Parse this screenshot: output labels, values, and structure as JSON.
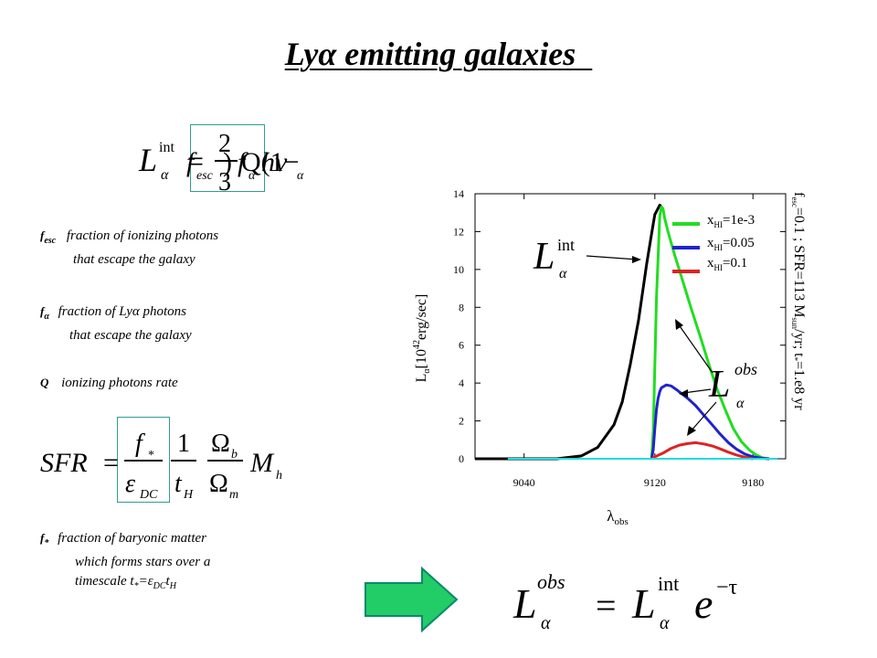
{
  "slide": {
    "title": "Lyα emitting galaxies  "
  },
  "formulas": {
    "lint": {
      "lhs": "L",
      "sup": "int",
      "sub": "α",
      "eq": "=",
      "num": "2",
      "den": "3",
      "rest1": "Q(1−",
      "f": "f",
      "fsub": "esc",
      "rest2": ")",
      "falpha": "f",
      "falphasub": "α",
      "hnu": "hν",
      "nusub": "α"
    },
    "sfr": {
      "lhs": "SFR",
      "eq": "=",
      "n1": "f",
      "n1sub": "*",
      "d1": "ε",
      "d1sub": "DC",
      "n2": "1",
      "d2": "t",
      "d2sub": "H",
      "n3": "Ω",
      "n3sub": "b",
      "d3": "Ω",
      "d3sub": "m",
      "m": "M",
      "msub": "h"
    },
    "lobs": {
      "lhs": "L",
      "lhssup": "obs",
      "lhssub": "α",
      "eq": "=",
      "r": "L",
      "rsup": "int",
      "rsub": "α",
      "e": "e",
      "esup": "−τ"
    }
  },
  "notes": {
    "fesc": {
      "sym": "f",
      "symsub": "esc",
      "line1": "fraction of ionizing photons",
      "line2": "that escape the galaxy"
    },
    "falpha": {
      "sym": "f",
      "symsub": "α",
      "line1": "fraction of Lyα photons",
      "line2": "that escape the galaxy"
    },
    "q": {
      "sym": "Q",
      "line1": "ionizing photons rate"
    },
    "fstar": {
      "sym": "f",
      "symsub": "*",
      "line1": "fraction of baryonic matter",
      "line2": "which forms stars over a",
      "line3a": "timescale t",
      "line3b": "*",
      "line3c": "=ε",
      "line3d": "DC",
      "line3e": "t",
      "line3f": "H"
    }
  },
  "chart_data": {
    "type": "line",
    "xlabel": "λobs",
    "xlabel_main": "λ",
    "xlabel_sub": "obs",
    "ylabel_main": "L",
    "ylabel_sub": "α",
    "ylabel_rest": "[10",
    "ylabel_sup": "42",
    "ylabel_end": "erg/sec]",
    "xlim": [
      9010,
      9200
    ],
    "ylim": [
      0,
      14
    ],
    "x_ticks": [
      9040,
      9120,
      9180
    ],
    "y_ticks": [
      0,
      2,
      4,
      6,
      8,
      10,
      12,
      14
    ],
    "side_note": {
      "p1": "f",
      "p1sub": "esc",
      "p2": "=0.1 ; SFR=113 M",
      "p2sub": "sun",
      "p3": "/yr; t",
      "p3sub": "*",
      "p4": "=1.e8 yr"
    },
    "legend": [
      {
        "label_main": "x",
        "label_sub": "HI",
        "label_rest": "=1e-3",
        "color": "#22dd22"
      },
      {
        "label_main": "x",
        "label_sub": "HI",
        "label_rest": "=0.05",
        "color": "#2222cc"
      },
      {
        "label_main": "x",
        "label_sub": "HI",
        "label_rest": "=0.1",
        "color": "#dd2222"
      }
    ],
    "annotations": {
      "lint": {
        "main": "L",
        "sub": "α",
        "sup": "int"
      },
      "lobs": {
        "main": "L",
        "sub": "α",
        "sup": "obs"
      }
    },
    "series": [
      {
        "name": "intrinsic",
        "color": "#000000",
        "x": [
          9010,
          9040,
          9060,
          9075,
          9085,
          9095,
          9100,
          9105,
          9110,
          9115,
          9118,
          9120,
          9123,
          9125
        ],
        "y": [
          0,
          0,
          0,
          0.15,
          0.6,
          1.8,
          3.0,
          5.0,
          7.3,
          10.3,
          11.9,
          12.9,
          13.4,
          13.2
        ]
      },
      {
        "name": "x_HI=1e-3",
        "color": "#22dd22",
        "x": [
          9118,
          9119,
          9121,
          9123,
          9124,
          9125,
          9126,
          9128,
          9132,
          9137,
          9142,
          9148,
          9153,
          9158,
          9163,
          9168,
          9173,
          9178,
          9182,
          9186,
          9190
        ],
        "y": [
          0,
          1.5,
          8.5,
          12.8,
          13.3,
          13.2,
          12.7,
          12.0,
          10.8,
          9.4,
          8.0,
          6.4,
          5.0,
          3.7,
          2.6,
          1.6,
          0.9,
          0.45,
          0.2,
          0.05,
          0
        ]
      },
      {
        "name": "x_HI=0.05",
        "color": "#2222cc",
        "x": [
          9118,
          9119,
          9120,
          9121,
          9122,
          9123,
          9124,
          9125,
          9127,
          9130,
          9134,
          9140,
          9145,
          9150,
          9155,
          9160,
          9165,
          9170,
          9175,
          9180,
          9185,
          9190
        ],
        "y": [
          0,
          0.5,
          1.6,
          2.6,
          3.2,
          3.55,
          3.75,
          3.8,
          3.9,
          3.85,
          3.6,
          3.2,
          2.8,
          2.3,
          1.8,
          1.3,
          0.85,
          0.5,
          0.25,
          0.1,
          0.03,
          0
        ]
      },
      {
        "name": "x_HI=0.1",
        "color": "#dd2222",
        "x": [
          9118,
          9120,
          9125,
          9130,
          9135,
          9140,
          9145,
          9150,
          9155,
          9160,
          9165,
          9170,
          9175,
          9180
        ],
        "y": [
          0,
          0.1,
          0.3,
          0.55,
          0.72,
          0.8,
          0.85,
          0.78,
          0.68,
          0.52,
          0.35,
          0.2,
          0.08,
          0
        ]
      },
      {
        "name": "baseline",
        "color": "#22dddd",
        "x": [
          9030,
          9120,
          9195
        ],
        "y": [
          0,
          0,
          0
        ]
      }
    ]
  },
  "colors": {
    "accent_frame": "#2f9f8f",
    "arrow_fill": "#22cc66",
    "arrow_stroke": "#0a8a6a"
  }
}
